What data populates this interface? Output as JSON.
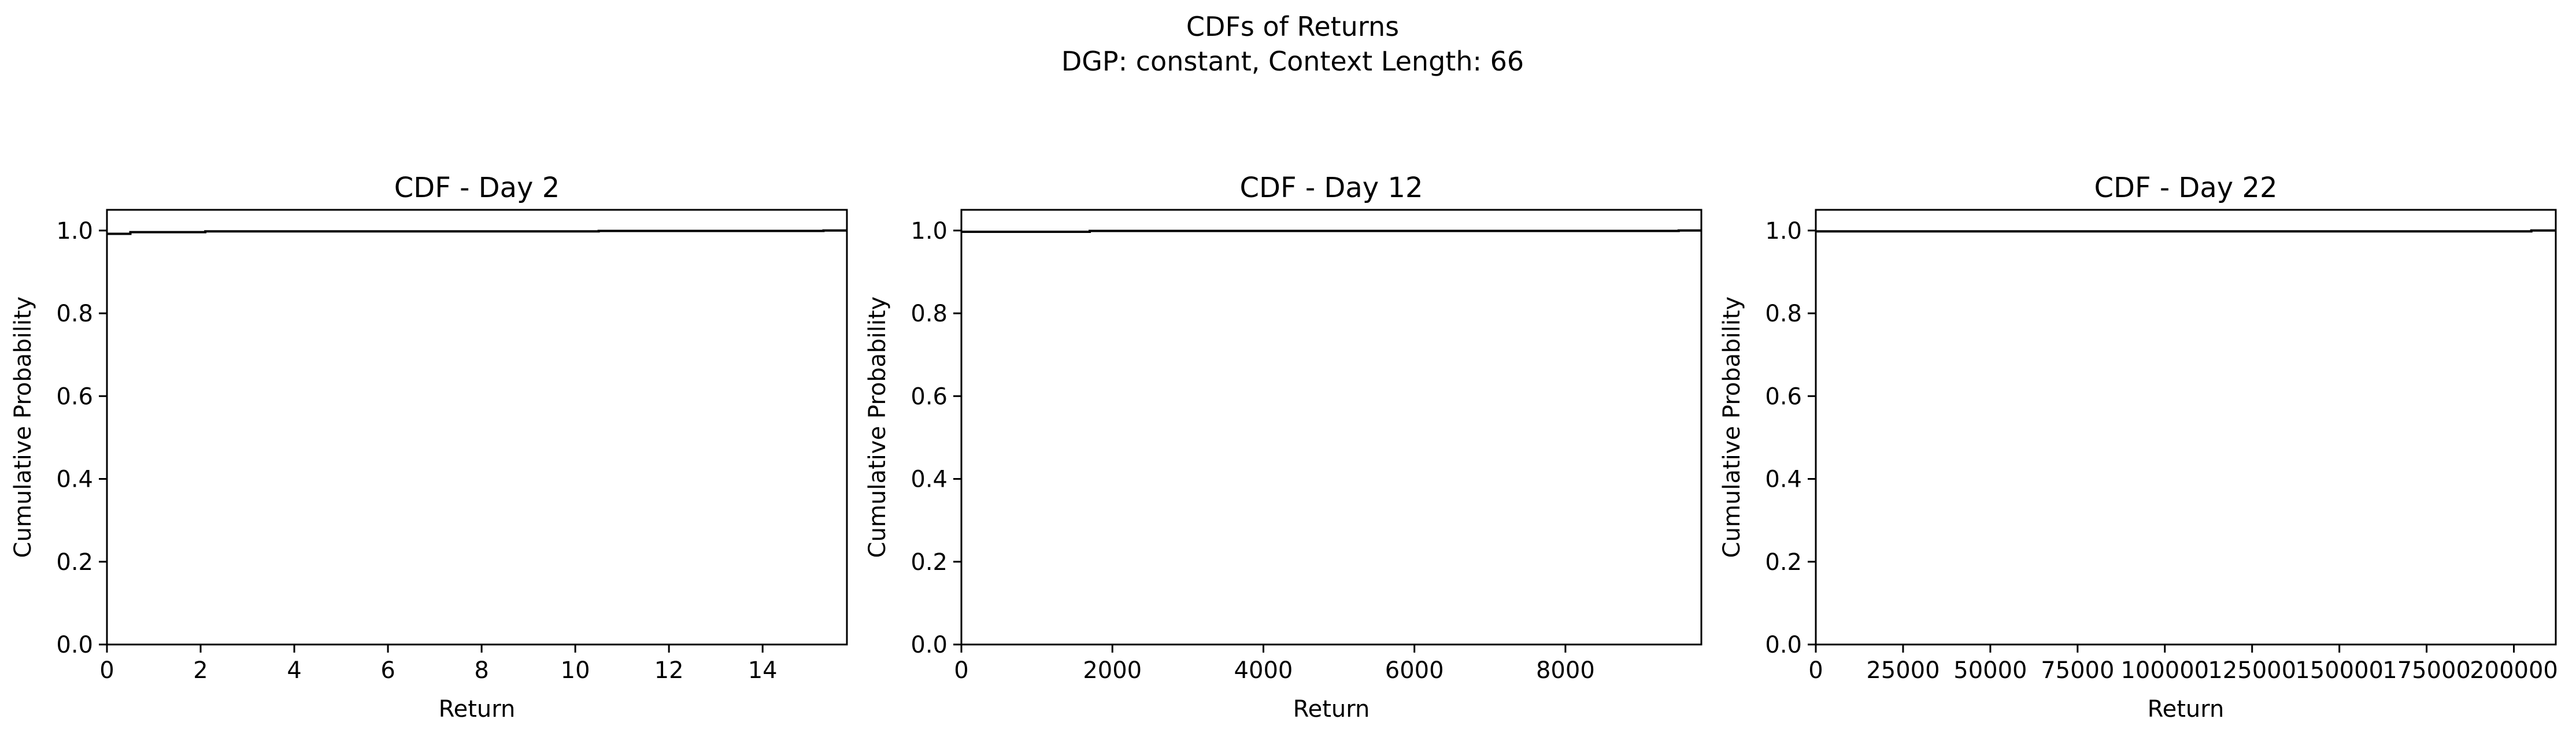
{
  "figure": {
    "title": "CDFs of Returns",
    "subtitle": "DGP: constant, Context Length: 66"
  },
  "chart_data": [
    {
      "type": "line",
      "step": true,
      "title": "CDF - Day 2",
      "xlabel": "Return",
      "ylabel": "Cumulative Probability",
      "xlim": [
        0,
        15.8
      ],
      "ylim": [
        0,
        1.05
      ],
      "xticks": [
        0,
        2,
        4,
        6,
        8,
        10,
        12,
        14
      ],
      "xtick_labels": [
        "0",
        "2",
        "4",
        "6",
        "8",
        "10",
        "12",
        "14"
      ],
      "yticks": [
        0,
        0.2,
        0.4,
        0.6,
        0.8,
        1.0
      ],
      "ytick_labels": [
        "0.0",
        "0.2",
        "0.4",
        "0.6",
        "0.8",
        "1.0"
      ],
      "grid": false,
      "color": "#000000",
      "series": [
        {
          "x": [
            0,
            0.5,
            0.5,
            2.1,
            2.1,
            10.5,
            10.5,
            15.3,
            15.3,
            15.8
          ],
          "y": [
            0.992,
            0.992,
            0.996,
            0.996,
            0.998,
            0.998,
            0.999,
            0.999,
            1.0,
            1.0
          ]
        }
      ]
    },
    {
      "type": "line",
      "step": true,
      "title": "CDF - Day 12",
      "xlabel": "Return",
      "ylabel": "Cumulative Probability",
      "xlim": [
        0,
        9800
      ],
      "ylim": [
        0,
        1.05
      ],
      "xticks": [
        0,
        2000,
        4000,
        6000,
        8000
      ],
      "xtick_labels": [
        "0",
        "2000",
        "4000",
        "6000",
        "8000"
      ],
      "yticks": [
        0,
        0.2,
        0.4,
        0.6,
        0.8,
        1.0
      ],
      "ytick_labels": [
        "0.0",
        "0.2",
        "0.4",
        "0.6",
        "0.8",
        "1.0"
      ],
      "grid": false,
      "color": "#000000",
      "series": [
        {
          "x": [
            0,
            1700,
            1700,
            9500,
            9500,
            9800
          ],
          "y": [
            0.997,
            0.997,
            0.999,
            0.999,
            1.0,
            1.0
          ]
        }
      ]
    },
    {
      "type": "line",
      "step": true,
      "title": "CDF - Day 22",
      "xlabel": "Return",
      "ylabel": "Cumulative Probability",
      "xlim": [
        0,
        212000
      ],
      "ylim": [
        0,
        1.05
      ],
      "xticks": [
        0,
        25000,
        50000,
        75000,
        100000,
        125000,
        150000,
        175000,
        200000
      ],
      "xtick_labels": [
        "0",
        "25000",
        "50000",
        "75000",
        "100000",
        "125000",
        "150000",
        "175000",
        "200000"
      ],
      "yticks": [
        0,
        0.2,
        0.4,
        0.6,
        0.8,
        1.0
      ],
      "ytick_labels": [
        "0.0",
        "0.2",
        "0.4",
        "0.6",
        "0.8",
        "1.0"
      ],
      "grid": false,
      "color": "#000000",
      "series": [
        {
          "x": [
            0,
            205000,
            205000,
            212000
          ],
          "y": [
            0.998,
            0.998,
            1.0,
            1.0
          ]
        }
      ]
    }
  ]
}
